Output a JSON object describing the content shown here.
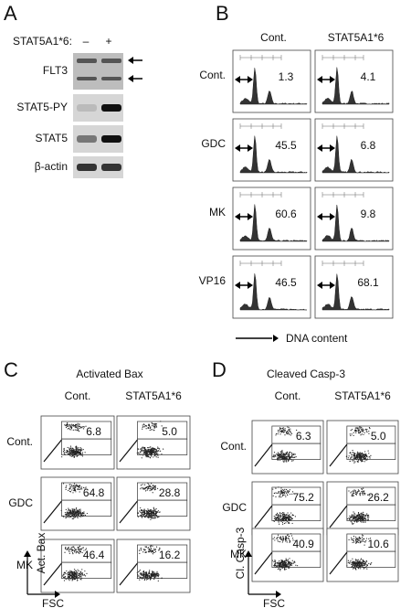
{
  "panel_a": {
    "letter": "A",
    "genotype_label": "STAT5A1*6:",
    "lanes": [
      "–",
      "+"
    ],
    "blots": [
      "FLT3",
      "STAT5-PY",
      "STAT5",
      "β-actin"
    ]
  },
  "panel_b": {
    "letter": "B",
    "columns": [
      "Cont.",
      "STAT5A1*6"
    ],
    "rows": [
      {
        "label": "Cont.",
        "values": [
          "1.3",
          "4.1"
        ]
      },
      {
        "label": "GDC",
        "values": [
          "45.5",
          "6.8"
        ]
      },
      {
        "label": "MK",
        "values": [
          "60.6",
          "9.8"
        ]
      },
      {
        "label": "VP16",
        "values": [
          "46.5",
          "68.1"
        ]
      }
    ],
    "x_axis_label": "DNA content"
  },
  "panel_c": {
    "letter": "C",
    "title": "Activated Bax",
    "columns": [
      "Cont.",
      "STAT5A1*6"
    ],
    "rows": [
      {
        "label": "Cont.",
        "values": [
          "6.8",
          "5.0"
        ]
      },
      {
        "label": "GDC",
        "values": [
          "64.8",
          "28.8"
        ]
      },
      {
        "label": "MK",
        "values": [
          "46.4",
          "16.2"
        ]
      }
    ],
    "y_axis_label": "Act. Bax",
    "x_axis_label": "FSC"
  },
  "panel_d": {
    "letter": "D",
    "title": "Cleaved Casp-3",
    "columns": [
      "Cont.",
      "STAT5A1*6"
    ],
    "rows": [
      {
        "label": "Cont.",
        "values": [
          "6.3",
          "5.0"
        ]
      },
      {
        "label": "GDC",
        "values": [
          "75.2",
          "26.2"
        ]
      },
      {
        "label": "MK",
        "values": [
          "40.9",
          "10.6"
        ]
      }
    ],
    "y_axis_label": "Cl. Casp-3",
    "x_axis_label": "FSC"
  }
}
